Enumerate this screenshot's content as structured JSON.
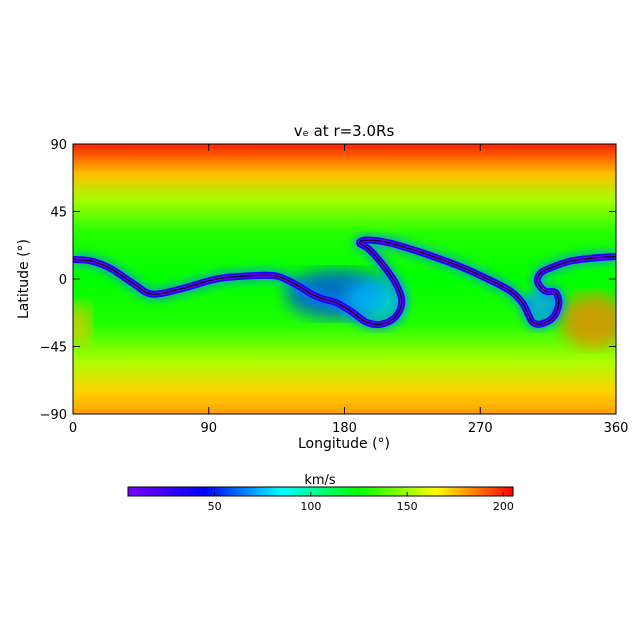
{
  "chart_data": {
    "type": "heatmap",
    "title": "vₑ at r=3.0Rs",
    "xlabel": "Longitude (°)",
    "ylabel": "Latitude (°)",
    "xlim": [
      0,
      360
    ],
    "ylim": [
      -90,
      90
    ],
    "x_ticks": [
      "0",
      "90",
      "180",
      "270",
      "360"
    ],
    "y_ticks": [
      "90",
      "45",
      "0",
      "−45",
      "−90"
    ],
    "x_tick_values": [
      0,
      90,
      180,
      270,
      360
    ],
    "y_tick_values": [
      90,
      45,
      0,
      -45,
      -90
    ],
    "colorbar": {
      "label": "km/s",
      "range": [
        5,
        205
      ],
      "ticks": [
        "50",
        "100",
        "150",
        "200"
      ],
      "tick_values": [
        50,
        100,
        150,
        200
      ],
      "colors": [
        "#7a00ff",
        "#0000ff",
        "#00ffff",
        "#00ff00",
        "#ffff00",
        "#ff0000"
      ]
    },
    "fields": {
      "polar_value": 200,
      "midlat_value": 160,
      "low_lat_value": 130,
      "sheet_value": 10
    },
    "current_sheet": {
      "longitude": [
        0,
        12,
        25,
        40,
        52,
        70,
        95,
        115,
        135,
        150,
        158,
        165,
        175,
        185,
        195,
        205,
        214,
        218,
        214,
        205,
        196,
        190,
        195,
        210,
        230,
        255,
        275,
        290,
        298,
        302,
        305,
        310,
        318,
        322,
        320,
        313,
        308,
        310,
        318,
        330,
        345,
        360
      ],
      "latitude": [
        13,
        12,
        7,
        -3,
        -10,
        -7,
        0,
        2,
        2,
        -5,
        -10,
        -13,
        -16,
        -22,
        -29,
        -30,
        -25,
        -15,
        -3,
        10,
        20,
        24,
        26,
        24,
        18,
        9,
        0,
        -8,
        -16,
        -24,
        -29,
        -30,
        -26,
        -17,
        -9,
        -8,
        -2,
        4,
        8,
        12,
        14,
        15
      ]
    }
  }
}
